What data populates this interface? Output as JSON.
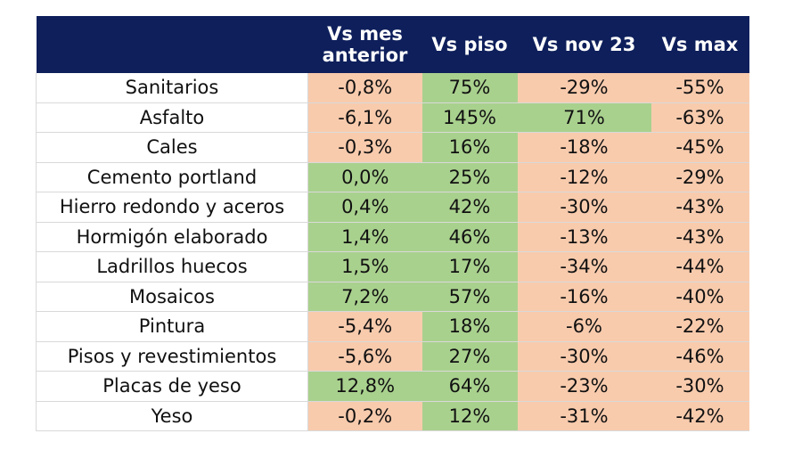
{
  "table": {
    "header": [
      "Vs mes anterior",
      "Vs piso",
      "Vs nov 23",
      "Vs max"
    ],
    "header_color": "#0e1f5b",
    "rows": [
      {
        "label": "Sanitarios",
        "cells": [
          "-0,8%",
          "75%",
          "-29%",
          "-55%"
        ],
        "fills": [
          "#f8cbad",
          "#a9d18e",
          "#f8cbad",
          "#f8cbad"
        ]
      },
      {
        "label": "Asfalto",
        "cells": [
          "-6,1%",
          "145%",
          "71%",
          "-63%"
        ],
        "fills": [
          "#f8cbad",
          "#a9d18e",
          "#a9d18e",
          "#f8cbad"
        ]
      },
      {
        "label": "Cales",
        "cells": [
          "-0,3%",
          "16%",
          "-18%",
          "-45%"
        ],
        "fills": [
          "#f8cbad",
          "#a9d18e",
          "#f8cbad",
          "#f8cbad"
        ]
      },
      {
        "label": "Cemento portland",
        "cells": [
          "0,0%",
          "25%",
          "-12%",
          "-29%"
        ],
        "fills": [
          "#a9d18e",
          "#a9d18e",
          "#f8cbad",
          "#f8cbad"
        ]
      },
      {
        "label": "Hierro redondo y aceros",
        "cells": [
          "0,4%",
          "42%",
          "-30%",
          "-43%"
        ],
        "fills": [
          "#a9d18e",
          "#a9d18e",
          "#f8cbad",
          "#f8cbad"
        ]
      },
      {
        "label": "Hormigón elaborado",
        "cells": [
          "1,4%",
          "46%",
          "-13%",
          "-43%"
        ],
        "fills": [
          "#a9d18e",
          "#a9d18e",
          "#f8cbad",
          "#f8cbad"
        ]
      },
      {
        "label": "Ladrillos huecos",
        "cells": [
          "1,5%",
          "17%",
          "-34%",
          "-44%"
        ],
        "fills": [
          "#a9d18e",
          "#a9d18e",
          "#f8cbad",
          "#f8cbad"
        ]
      },
      {
        "label": "Mosaicos",
        "cells": [
          "7,2%",
          "57%",
          "-16%",
          "-40%"
        ],
        "fills": [
          "#a9d18e",
          "#a9d18e",
          "#f8cbad",
          "#f8cbad"
        ]
      },
      {
        "label": "Pintura",
        "cells": [
          "-5,4%",
          "18%",
          "-6%",
          "-22%"
        ],
        "fills": [
          "#f8cbad",
          "#a9d18e",
          "#f8cbad",
          "#f8cbad"
        ]
      },
      {
        "label": "Pisos y revestimientos",
        "cells": [
          "-5,6%",
          "27%",
          "-30%",
          "-46%"
        ],
        "fills": [
          "#f8cbad",
          "#a9d18e",
          "#f8cbad",
          "#f8cbad"
        ]
      },
      {
        "label": "Placas de yeso",
        "cells": [
          "12,8%",
          "64%",
          "-23%",
          "-30%"
        ],
        "fills": [
          "#a9d18e",
          "#a9d18e",
          "#f8cbad",
          "#f8cbad"
        ]
      },
      {
        "label": "Yeso",
        "cells": [
          "-0,2%",
          "12%",
          "-31%",
          "-42%"
        ],
        "fills": [
          "#f8cbad",
          "#a9d18e",
          "#f8cbad",
          "#f8cbad"
        ]
      }
    ]
  }
}
